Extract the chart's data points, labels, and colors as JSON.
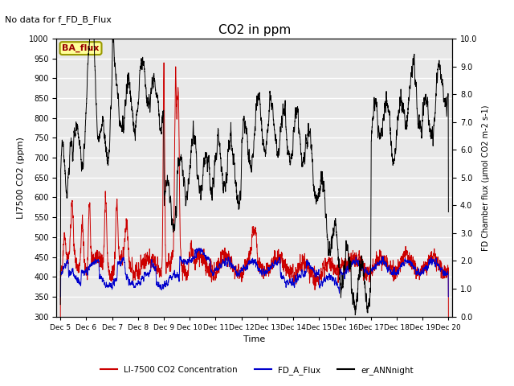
{
  "title": "CO2 in ppm",
  "top_left_text": "No data for f_FD_B_Flux",
  "box_label": "BA_flux",
  "xlabel": "Time",
  "ylabel_left": "LI7500 CO2 (ppm)",
  "ylabel_right": "FD Chamber flux (µmol CO2 m-2 s-1)",
  "ylim_left": [
    300,
    1000
  ],
  "ylim_right": [
    0.0,
    10.0
  ],
  "yticks_left": [
    300,
    350,
    400,
    450,
    500,
    550,
    600,
    650,
    700,
    750,
    800,
    850,
    900,
    950,
    1000
  ],
  "yticks_right": [
    0.0,
    1.0,
    2.0,
    3.0,
    4.0,
    5.0,
    6.0,
    7.0,
    8.0,
    9.0,
    10.0
  ],
  "xtick_labels": [
    "Dec 5",
    "Dec 6",
    "Dec 7",
    "Dec 8",
    "Dec 9",
    "Dec 10",
    "Dec 11",
    "Dec 12",
    "Dec 13",
    "Dec 14",
    "Dec 15",
    "Dec 16",
    "Dec 17",
    "Dec 18",
    "Dec 19",
    "Dec 20"
  ],
  "xtick_positions": [
    5,
    6,
    7,
    8,
    9,
    10,
    11,
    12,
    13,
    14,
    15,
    16,
    17,
    18,
    19,
    20
  ],
  "legend_entries": [
    {
      "label": "LI-7500 CO2 Concentration",
      "color": "#cc0000"
    },
    {
      "label": "FD_A_Flux",
      "color": "#0000cc"
    },
    {
      "label": "er_ANNnight",
      "color": "#000000"
    }
  ],
  "bg_color": "#e8e8e8",
  "grid_color": "#ffffff",
  "box_facecolor": "#ffff99",
  "box_edgecolor": "#999900"
}
